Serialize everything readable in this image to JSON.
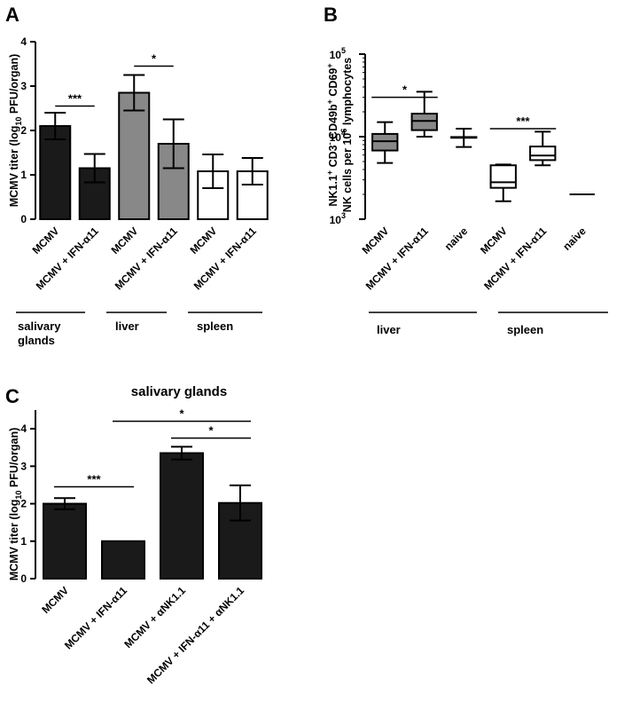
{
  "colors": {
    "black_bar": "#1a1a1a",
    "grey_bar": "#888888",
    "white_bar": "#ffffff",
    "axis": "#000000"
  },
  "chart_data": [
    {
      "panel": "A",
      "type": "bar",
      "title": "",
      "ylabel_pre": "MCMV titer (log",
      "ylabel_sub": "10",
      "ylabel_post": " PFU/organ)",
      "ylim": [
        0,
        4
      ],
      "yticks": [
        0,
        1,
        2,
        3,
        4
      ],
      "categories": [
        "MCMV",
        "MCMV + IFN-α11",
        "MCMV",
        "MCMV + IFN-α11",
        "MCMV",
        "MCMV + IFN-α11"
      ],
      "values": [
        2.1,
        1.15,
        2.85,
        1.7,
        1.08,
        1.08
      ],
      "errors": [
        0.3,
        0.32,
        0.4,
        0.55,
        0.38,
        0.3
      ],
      "fills": [
        "black",
        "black",
        "grey",
        "grey",
        "white",
        "white"
      ],
      "groups": [
        {
          "label_lines": [
            "salivary",
            "glands"
          ],
          "bars": [
            0,
            1
          ]
        },
        {
          "label_lines": [
            "liver"
          ],
          "bars": [
            2,
            3
          ]
        },
        {
          "label_lines": [
            "spleen"
          ],
          "bars": [
            4,
            5
          ]
        }
      ],
      "significance": [
        {
          "from": 0,
          "to": 1,
          "y": 2.55,
          "label": "***"
        },
        {
          "from": 2,
          "to": 3,
          "y": 3.45,
          "label": "*"
        }
      ]
    },
    {
      "panel": "B",
      "type": "box",
      "title": "",
      "ylabel_line1": "NK1.1+ CD3- CD49b+ CD69+",
      "ylabel_line2": "NK cells per 106 lymphocytes",
      "yscale": "log",
      "ylim": [
        1000,
        100000
      ],
      "yticks": [
        {
          "value": 1000,
          "base": "10",
          "exp": "3"
        },
        {
          "value": 10000,
          "base": "10",
          "exp": "4"
        },
        {
          "value": 100000,
          "base": "10",
          "exp": "5"
        }
      ],
      "categories": [
        "MCMV",
        "MCMV + IFN-α11",
        "naive",
        "MCMV",
        "MCMV + IFN-α11",
        "naive"
      ],
      "boxes": [
        {
          "min": 4800,
          "q1": 6800,
          "median": 8800,
          "q3": 10800,
          "max": 15000,
          "fill": "grey"
        },
        {
          "min": 10000,
          "q1": 12000,
          "median": 15500,
          "q3": 19000,
          "max": 35000,
          "fill": "grey"
        },
        {
          "min": 7500,
          "q1": 9700,
          "median": 9800,
          "q3": 9900,
          "max": 12500,
          "fill": "white"
        },
        {
          "min": 1650,
          "q1": 2400,
          "median": 2800,
          "q3": 4500,
          "max": 4600,
          "fill": "white"
        },
        {
          "min": 4500,
          "q1": 5200,
          "median": 5900,
          "q3": 7600,
          "max": 11500,
          "fill": "white"
        },
        {
          "min": 2000,
          "q1": 2000,
          "median": 2000,
          "q3": 2000,
          "max": 2000,
          "fill": "white"
        }
      ],
      "groups": [
        {
          "label_lines": [
            "liver"
          ],
          "bars": [
            0,
            2
          ]
        },
        {
          "label_lines": [
            "spleen"
          ],
          "bars": [
            3,
            5
          ]
        }
      ],
      "significance": [
        {
          "from": 0,
          "to": 1,
          "y": 30000,
          "label": "*"
        },
        {
          "from": 3,
          "to": 4,
          "y": 12500,
          "label": "***"
        }
      ]
    },
    {
      "panel": "C",
      "type": "bar",
      "title": "salivary glands",
      "ylabel_pre": "MCMV titer (log",
      "ylabel_sub": "10",
      "ylabel_post": " PFU/organ)",
      "ylim": [
        0,
        4.5
      ],
      "yticks": [
        0,
        1,
        2,
        3,
        4
      ],
      "categories": [
        "MCMV",
        "MCMV + IFN-α11",
        "MCMV + αNK1.1",
        "MCMV + IFN-α11 + αNK1.1"
      ],
      "values": [
        2.0,
        1.0,
        3.35,
        2.02
      ],
      "errors": [
        0.15,
        0,
        0.17,
        0.47
      ],
      "fills": [
        "black",
        "black",
        "black",
        "black"
      ],
      "groups": [],
      "significance": [
        {
          "from": 0,
          "to": 1,
          "y": 2.45,
          "label": "***"
        },
        {
          "from": 2,
          "to": 3,
          "y": 3.75,
          "label": "*"
        },
        {
          "from": 1,
          "to": 3,
          "y": 4.2,
          "label": "*"
        }
      ]
    }
  ]
}
